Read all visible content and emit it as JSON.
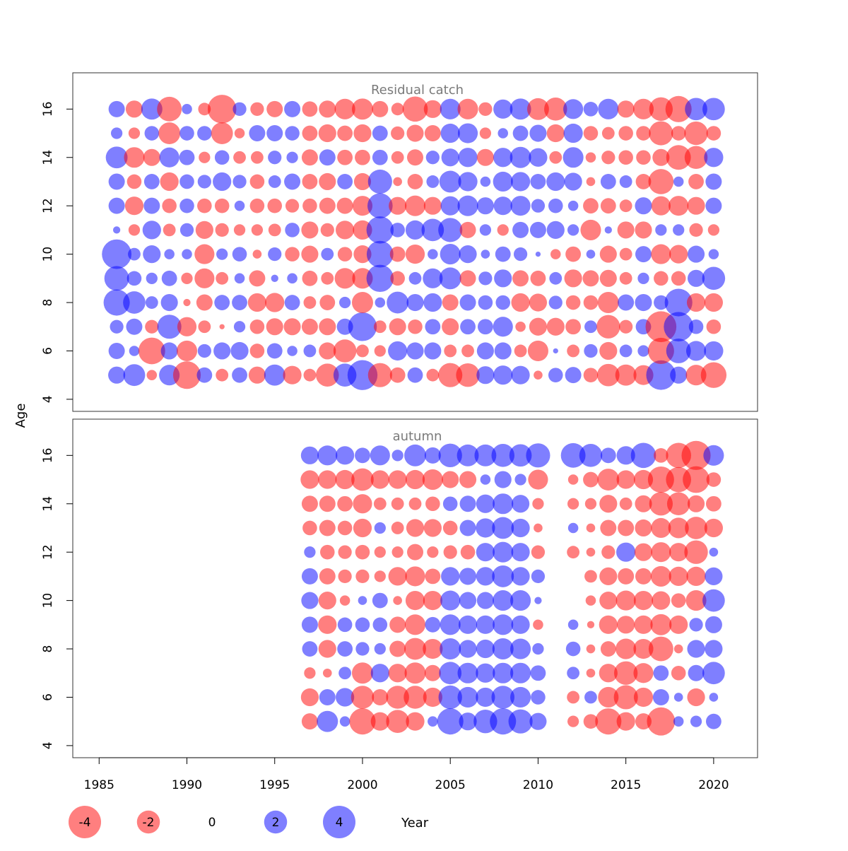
{
  "chart_data": {
    "type": "scatter",
    "subtype": "bubble",
    "ylabel": "Age",
    "xlabel": "Year",
    "x_ticks": [
      1985,
      1990,
      1995,
      2000,
      2005,
      2010,
      2015,
      2020
    ],
    "y_ticks": [
      4,
      6,
      8,
      10,
      12,
      14,
      16
    ],
    "xlim": [
      1983.5,
      2022.5
    ],
    "ylim": [
      3.5,
      17.5
    ],
    "ages": [
      5,
      6,
      7,
      8,
      9,
      10,
      11,
      12,
      13,
      14,
      15,
      16
    ],
    "colors": {
      "positive": "#0000ff",
      "negative": "#ff0000",
      "opacity": 0.5
    },
    "size_legend": {
      "values": [
        -4,
        -2,
        0,
        2,
        4
      ],
      "labels": [
        "-4",
        "-2",
        "0",
        "2",
        "4"
      ]
    },
    "panels": [
      {
        "title": "Residual catch",
        "years": [
          1986,
          1987,
          1988,
          1989,
          1990,
          1991,
          1992,
          1993,
          1994,
          1995,
          1996,
          1997,
          1998,
          1999,
          2000,
          2001,
          2002,
          2003,
          2004,
          2005,
          2006,
          2007,
          2008,
          2009,
          2010,
          2011,
          2012,
          2013,
          2014,
          2015,
          2016,
          2017,
          2018,
          2019,
          2020
        ],
        "residuals": [
          [
            1.1,
            1.8,
            -0.4,
            1.6,
            -2.9,
            0.9,
            -0.6,
            0.9,
            -1.1,
            1.7,
            -1.3,
            -0.6,
            -2.0,
            2.0,
            3.4,
            -2.2,
            -0.9,
            0.9,
            -0.6,
            -2.2,
            -2.1,
            1.2,
            1.4,
            1.3,
            -0.3,
            0.8,
            1.0,
            -0.8,
            -1.9,
            -1.7,
            -1.5,
            3.3,
            1.1,
            -1.6,
            -2.5
          ],
          [
            1.0,
            0.4,
            -2.7,
            1.1,
            -1.6,
            0.7,
            1.1,
            1.2,
            -0.8,
            0.9,
            0.4,
            0.6,
            -1.1,
            -2.0,
            -0.6,
            -0.5,
            1.4,
            1.1,
            1.1,
            -0.6,
            -0.6,
            1.1,
            1.1,
            -0.6,
            -1.6,
            0.1,
            -0.6,
            0.7,
            -1.2,
            0.6,
            0.5,
            -2.6,
            2.3,
            1.5,
            1.4
          ],
          [
            0.7,
            1.0,
            -0.7,
            2.2,
            -1.4,
            -0.6,
            -0.1,
            0.5,
            -0.8,
            -1.1,
            -1.1,
            -1.0,
            -1.1,
            1.0,
            3.1,
            -0.6,
            -1.1,
            -0.8,
            0.9,
            -1.1,
            0.9,
            0.9,
            1.5,
            -0.4,
            -1.2,
            -1.2,
            -0.9,
            0.6,
            -2.1,
            -0.7,
            0.9,
            -3.6,
            3.3,
            0.8,
            -0.8
          ],
          [
            2.6,
            1.9,
            0.6,
            1.1,
            -0.2,
            -1.0,
            0.9,
            0.9,
            -1.3,
            -1.4,
            0.9,
            -0.6,
            -0.9,
            0.5,
            -1.7,
            0.4,
            1.8,
            1.1,
            1.3,
            -1.0,
            1.0,
            0.8,
            0.8,
            -1.3,
            -1.2,
            0.7,
            -0.8,
            -0.8,
            -1.7,
            1.0,
            1.1,
            0.8,
            2.9,
            -1.3,
            -1.3
          ],
          [
            2.3,
            0.8,
            0.5,
            0.9,
            -0.5,
            -1.5,
            -0.6,
            0.4,
            -1.0,
            0.2,
            0.4,
            -0.9,
            -0.6,
            -1.6,
            -1.6,
            2.8,
            -0.8,
            0.6,
            1.5,
            1.8,
            -1.0,
            0.7,
            1.2,
            -1.0,
            -0.9,
            0.6,
            -1.2,
            -1.0,
            -1.1,
            -0.6,
            0.5,
            -0.8,
            -0.8,
            1.1,
            2.0
          ],
          [
            3.3,
            0.6,
            1.2,
            0.4,
            0.4,
            -1.5,
            0.5,
            0.8,
            -0.3,
            0.7,
            -0.8,
            -1.1,
            0.6,
            -0.8,
            -1.2,
            2.7,
            -0.9,
            -1.4,
            0.4,
            1.6,
            1.2,
            0.3,
            0.9,
            0.7,
            0.1,
            -0.4,
            -0.9,
            0.3,
            -1.1,
            -0.6,
            1.0,
            -1.5,
            -1.3,
            1.1,
            0.4
          ],
          [
            0.2,
            -0.5,
            1.3,
            -0.6,
            0.7,
            -1.2,
            -0.7,
            -0.5,
            -0.5,
            -0.6,
            0.8,
            -1.1,
            -0.7,
            -1.3,
            -1.4,
            2.8,
            0.8,
            1.4,
            1.9,
            2.2,
            -1.0,
            0.5,
            -0.5,
            1.0,
            1.0,
            1.2,
            0.5,
            -1.6,
            0.2,
            -1.1,
            -1.1,
            0.5,
            0.5,
            -0.7,
            -0.5
          ],
          [
            1.0,
            -1.3,
            1.0,
            -0.8,
            0.8,
            -0.8,
            -0.8,
            0.4,
            -0.8,
            -0.8,
            -0.7,
            -0.8,
            -1.0,
            -1.0,
            -1.5,
            2.4,
            -1.2,
            -1.6,
            -1.2,
            1.4,
            1.6,
            1.1,
            1.3,
            1.5,
            0.7,
            0.8,
            0.4,
            -0.9,
            -0.9,
            -0.6,
            1.1,
            -1.4,
            -1.5,
            -1.2,
            1.0
          ],
          [
            1.0,
            -0.8,
            0.9,
            -1.3,
            0.8,
            0.7,
            1.3,
            0.7,
            -0.8,
            0.6,
            1.0,
            -0.9,
            -1.1,
            0.9,
            -1.1,
            2.2,
            -0.3,
            -0.9,
            0.6,
            1.8,
            1.4,
            0.4,
            1.5,
            1.4,
            0.9,
            1.3,
            1.2,
            -0.3,
            0.9,
            0.6,
            -0.9,
            -2.4,
            0.4,
            -0.9,
            1.0
          ],
          [
            1.8,
            -1.6,
            -1.1,
            1.5,
            0.9,
            -0.5,
            0.8,
            -0.6,
            -0.6,
            0.7,
            0.5,
            -1.0,
            1.0,
            -0.9,
            -0.9,
            0.9,
            -0.6,
            -1.0,
            0.7,
            1.2,
            1.4,
            -1.1,
            1.4,
            1.7,
            1.3,
            -0.6,
            1.6,
            -0.4,
            -0.7,
            -0.8,
            -0.8,
            -1.1,
            -2.3,
            -2.0,
            1.4
          ],
          [
            0.5,
            -0.5,
            0.8,
            -1.8,
            0.8,
            0.8,
            -1.8,
            -0.4,
            1.0,
            1.0,
            0.8,
            -0.9,
            -1.2,
            -0.9,
            -1.2,
            0.9,
            -0.7,
            -1.1,
            -1.0,
            1.4,
            1.5,
            -0.5,
            0.4,
            0.9,
            1.1,
            -1.2,
            1.4,
            -0.8,
            -0.6,
            -0.8,
            -0.8,
            -2.2,
            -0.8,
            -2.1,
            -0.8
          ],
          [
            1.0,
            -1.1,
            1.7,
            -2.3,
            0.4,
            -0.6,
            -3.1,
            0.7,
            -0.7,
            -1.0,
            1.0,
            -0.9,
            -1.1,
            -1.6,
            -1.7,
            -1.0,
            -0.6,
            -2.4,
            -1.2,
            1.6,
            -1.6,
            -0.7,
            1.4,
            1.7,
            -1.8,
            -2.0,
            1.5,
            0.8,
            1.6,
            -1.1,
            -1.6,
            -2.1,
            -2.6,
            1.9,
            1.9
          ]
        ]
      },
      {
        "title": "autumn",
        "years": [
          1997,
          1998,
          1999,
          2000,
          2001,
          2002,
          2003,
          2004,
          2005,
          2006,
          2007,
          2008,
          2009,
          2010,
          2012,
          2013,
          2014,
          2015,
          2016,
          2017,
          2018,
          2019,
          2020
        ],
        "residuals": [
          [
            -1.0,
            1.7,
            0.4,
            -2.6,
            -1.3,
            -2.0,
            -1.3,
            0.4,
            2.6,
            1.2,
            2.1,
            2.6,
            2.2,
            1.1,
            -0.5,
            -0.8,
            -2.6,
            -1.3,
            -1.0,
            -3.0,
            0.4,
            0.5,
            0.9
          ],
          [
            -1.2,
            1.0,
            1.3,
            -2.0,
            -1.0,
            -2.0,
            -2.0,
            -1.4,
            2.1,
            1.6,
            1.4,
            2.0,
            1.6,
            0.8,
            -0.6,
            0.6,
            -1.6,
            -2.2,
            -1.4,
            1.0,
            0.3,
            -1.2,
            0.3
          ],
          [
            -0.5,
            -0.3,
            0.6,
            -1.7,
            1.3,
            -1.3,
            -1.7,
            -1.0,
            1.9,
            1.6,
            1.4,
            1.6,
            1.6,
            0.9,
            0.6,
            -0.3,
            -1.3,
            -2.1,
            -1.5,
            0.9,
            -0.8,
            1.0,
            1.9
          ],
          [
            0.9,
            -1.2,
            0.9,
            0.7,
            0.5,
            -1.0,
            -1.8,
            -1.5,
            1.7,
            1.2,
            1.3,
            1.7,
            1.6,
            0.5,
            0.8,
            -0.3,
            -0.9,
            -1.6,
            -1.5,
            -2.3,
            -0.3,
            1.2,
            1.2
          ],
          [
            1.0,
            -1.3,
            0.8,
            0.8,
            0.8,
            -1.0,
            -1.6,
            0.9,
            1.6,
            1.3,
            1.3,
            1.6,
            1.3,
            -0.4,
            0.4,
            -0.2,
            -1.3,
            -1.2,
            -1.3,
            -1.7,
            -1.3,
            0.7,
            1.1
          ],
          [
            1.1,
            -1.2,
            -0.4,
            0.3,
            0.9,
            -0.3,
            -1.4,
            -1.4,
            1.5,
            1.1,
            1.1,
            1.6,
            1.6,
            0.2,
            null,
            -0.4,
            -1.2,
            -1.5,
            -1.4,
            -1.3,
            -0.8,
            -1.6,
            1.9
          ],
          [
            1.0,
            -1.0,
            -0.7,
            -0.7,
            -0.5,
            -1.3,
            -1.5,
            -0.9,
            1.3,
            1.1,
            1.3,
            1.8,
            1.3,
            0.7,
            null,
            -0.6,
            -1.2,
            -1.0,
            -1.0,
            -1.6,
            -1.4,
            -1.4,
            1.2
          ],
          [
            0.5,
            -0.8,
            -0.7,
            -0.8,
            -0.5,
            -0.5,
            -1.0,
            -0.5,
            -0.7,
            -0.8,
            1.3,
            1.6,
            1.3,
            -0.7,
            -0.6,
            -0.3,
            -0.7,
            1.4,
            -1.2,
            -1.5,
            -1.3,
            -2.1,
            0.3
          ],
          [
            -0.8,
            -1.0,
            -0.8,
            -1.3,
            0.5,
            -0.6,
            -1.2,
            -1.2,
            -0.8,
            1.0,
            1.4,
            1.8,
            1.3,
            -0.3,
            0.4,
            -0.3,
            -1.0,
            -1.0,
            -1.1,
            -1.5,
            -1.6,
            -1.9,
            -1.3
          ],
          [
            -1.0,
            -1.0,
            -0.9,
            -1.4,
            -0.6,
            -0.6,
            -0.6,
            -0.8,
            0.8,
            1.0,
            1.3,
            1.6,
            1.2,
            -0.5,
            -0.5,
            -0.5,
            -1.2,
            -0.6,
            -1.1,
            -2.1,
            -2.0,
            -1.1,
            -0.9
          ],
          [
            -1.3,
            -1.3,
            -1.4,
            -1.9,
            -1.3,
            -1.3,
            -1.4,
            -1.6,
            -1.1,
            -1.1,
            0.4,
            1.1,
            0.5,
            -1.5,
            -0.4,
            -0.9,
            -1.8,
            -1.3,
            -1.4,
            -2.6,
            -2.4,
            -2.7,
            -0.8
          ],
          [
            1.2,
            1.5,
            1.3,
            0.9,
            1.5,
            0.5,
            1.8,
            1.0,
            2.1,
            1.8,
            1.8,
            2.0,
            1.9,
            2.2,
            2.3,
            2.0,
            0.9,
            1.3,
            2.4,
            -0.8,
            -2.4,
            -3.2,
            1.6
          ]
        ]
      }
    ]
  }
}
